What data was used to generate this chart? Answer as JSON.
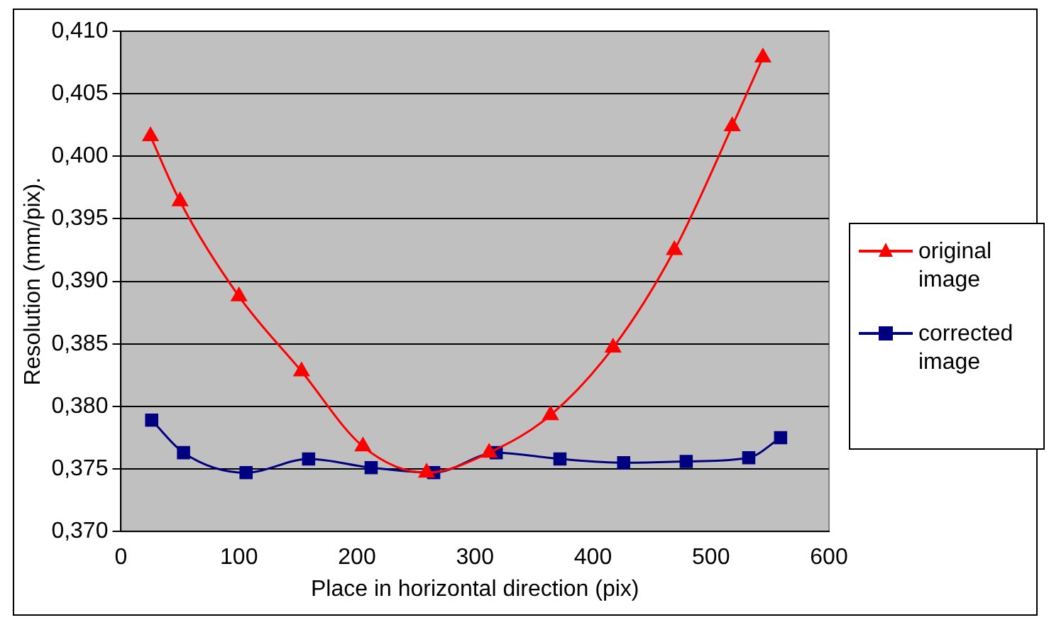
{
  "chart_data": {
    "type": "line",
    "xlabel": "Place in horizontal direction (pix)",
    "ylabel": "Resolution (mm/pix).",
    "xlim": [
      0,
      600
    ],
    "xticks": [
      0,
      100,
      200,
      300,
      400,
      500,
      600
    ],
    "ylim": [
      0.37,
      0.41
    ],
    "yticks": [
      {
        "value": 0.37,
        "label": "0,370"
      },
      {
        "value": 0.375,
        "label": "0,375"
      },
      {
        "value": 0.38,
        "label": "0,380"
      },
      {
        "value": 0.385,
        "label": "0,385"
      },
      {
        "value": 0.39,
        "label": "0,390"
      },
      {
        "value": 0.395,
        "label": "0,395"
      },
      {
        "value": 0.4,
        "label": "0,400"
      },
      {
        "value": 0.405,
        "label": "0,405"
      },
      {
        "value": 0.41,
        "label": "0,410"
      }
    ],
    "grid": "y",
    "legend": "right",
    "series": [
      {
        "name": "original image",
        "color": "#ff0000",
        "marker": "triangle",
        "x": [
          25,
          50,
          100,
          153,
          205,
          259,
          312,
          364,
          417,
          469,
          518,
          544
        ],
        "values": [
          0.4016,
          0.3964,
          0.3888,
          0.3828,
          0.3768,
          0.3747,
          0.3763,
          0.3793,
          0.3847,
          0.3925,
          0.4024,
          0.4079
        ]
      },
      {
        "name": "corrected image",
        "color": "#000080",
        "marker": "square",
        "x": [
          26,
          53,
          106,
          159,
          212,
          265,
          318,
          372,
          426,
          479,
          532,
          559
        ],
        "values": [
          0.3789,
          0.3763,
          0.3747,
          0.3758,
          0.3751,
          0.3747,
          0.3763,
          0.3758,
          0.3755,
          0.3756,
          0.3759,
          0.3775
        ]
      }
    ]
  }
}
